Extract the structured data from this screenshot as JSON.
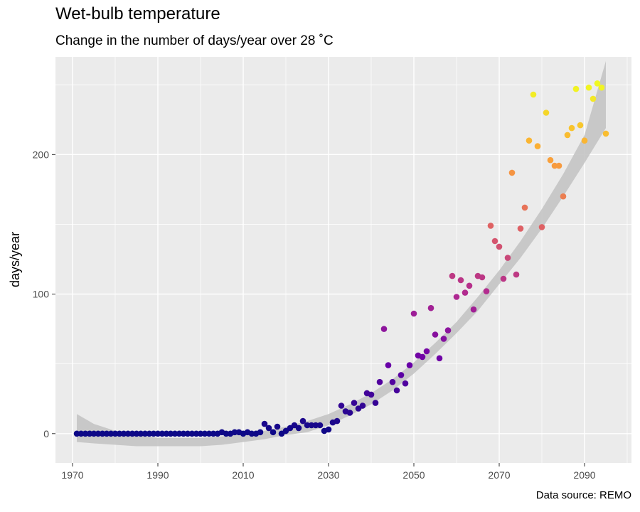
{
  "chart_data": {
    "type": "scatter",
    "title": "Wet-bulb temperature",
    "subtitle": "Change in the number of days/year over 28 ˚C",
    "xlabel": "",
    "ylabel": "days/year",
    "caption": "Data source: REMO",
    "xlim": [
      1966,
      2101
    ],
    "ylim": [
      -21,
      270
    ],
    "x_ticks": [
      1970,
      1990,
      2010,
      2030,
      2050,
      2070,
      2090
    ],
    "y_ticks": [
      0,
      100,
      200
    ],
    "grid": true,
    "legend": "none",
    "color_scale": [
      "#0d0887",
      "#6a00a8",
      "#b12a90",
      "#e16462",
      "#fca636",
      "#f0f921"
    ],
    "x": [
      1971,
      1972,
      1973,
      1974,
      1975,
      1976,
      1977,
      1978,
      1979,
      1980,
      1981,
      1982,
      1983,
      1984,
      1985,
      1986,
      1987,
      1988,
      1989,
      1990,
      1991,
      1992,
      1993,
      1994,
      1995,
      1996,
      1997,
      1998,
      1999,
      2000,
      2001,
      2002,
      2003,
      2004,
      2005,
      2006,
      2007,
      2008,
      2009,
      2010,
      2011,
      2012,
      2013,
      2014,
      2015,
      2016,
      2017,
      2018,
      2019,
      2020,
      2021,
      2022,
      2023,
      2024,
      2025,
      2026,
      2027,
      2028,
      2029,
      2030,
      2031,
      2032,
      2033,
      2034,
      2035,
      2036,
      2037,
      2038,
      2039,
      2040,
      2041,
      2042,
      2043,
      2044,
      2045,
      2046,
      2047,
      2048,
      2049,
      2050,
      2051,
      2052,
      2053,
      2054,
      2055,
      2056,
      2057,
      2058,
      2059,
      2060,
      2061,
      2062,
      2063,
      2064,
      2065,
      2066,
      2067,
      2068,
      2069,
      2070,
      2071,
      2072,
      2073,
      2074,
      2075,
      2076,
      2077,
      2078,
      2079,
      2080,
      2081,
      2082,
      2083,
      2084,
      2085,
      2086,
      2087,
      2088,
      2089,
      2090,
      2091,
      2092,
      2093,
      2094,
      2095
    ],
    "y": [
      0,
      0,
      0,
      0,
      0,
      0,
      0,
      0,
      0,
      0,
      0,
      0,
      0,
      0,
      0,
      0,
      0,
      0,
      0,
      0,
      0,
      0,
      0,
      0,
      0,
      0,
      0,
      0,
      0,
      0,
      0,
      0,
      0,
      0,
      1,
      0,
      0,
      1,
      1,
      0,
      1,
      0,
      0,
      1,
      7,
      4,
      1,
      5,
      0,
      2,
      4,
      6,
      4,
      9,
      6,
      6,
      6,
      6,
      2,
      3,
      8,
      9,
      20,
      16,
      15,
      22,
      18,
      20,
      29,
      28,
      22,
      37,
      75,
      49,
      37,
      31,
      42,
      36,
      49,
      86,
      56,
      55,
      59,
      90,
      71,
      54,
      68,
      74,
      113,
      98,
      110,
      101,
      106,
      89,
      113,
      112,
      102,
      149,
      138,
      134,
      111,
      126,
      187,
      114,
      147,
      162,
      210,
      243,
      206,
      148,
      230,
      196,
      192,
      192,
      170,
      214,
      219,
      247,
      221,
      210,
      248,
      240,
      251,
      248,
      215
    ],
    "trend": {
      "x": [
        1971,
        1975,
        1980,
        1985,
        1990,
        1995,
        2000,
        2005,
        2010,
        2015,
        2020,
        2025,
        2030,
        2035,
        2040,
        2045,
        2050,
        2055,
        2060,
        2065,
        2070,
        2075,
        2080,
        2085,
        2090,
        2095
      ],
      "fit": [
        4,
        0,
        -3,
        -5,
        -6,
        -6,
        -6,
        -5,
        -3,
        -1,
        2,
        5,
        10,
        17,
        25,
        35,
        47,
        61,
        76,
        93,
        112,
        132,
        154,
        178,
        204,
        232
      ],
      "upper": [
        14,
        7,
        2,
        -1,
        -3,
        -3,
        -3,
        -2,
        0,
        2,
        5,
        9,
        14,
        21,
        29,
        39,
        51,
        65,
        80,
        98,
        117,
        138,
        161,
        186,
        214,
        267
      ],
      "lower": [
        -6,
        -7,
        -8,
        -9,
        -9,
        -9,
        -9,
        -8,
        -6,
        -4,
        -1,
        1,
        6,
        13,
        21,
        31,
        43,
        57,
        72,
        88,
        107,
        126,
        147,
        170,
        194,
        219
      ]
    }
  }
}
